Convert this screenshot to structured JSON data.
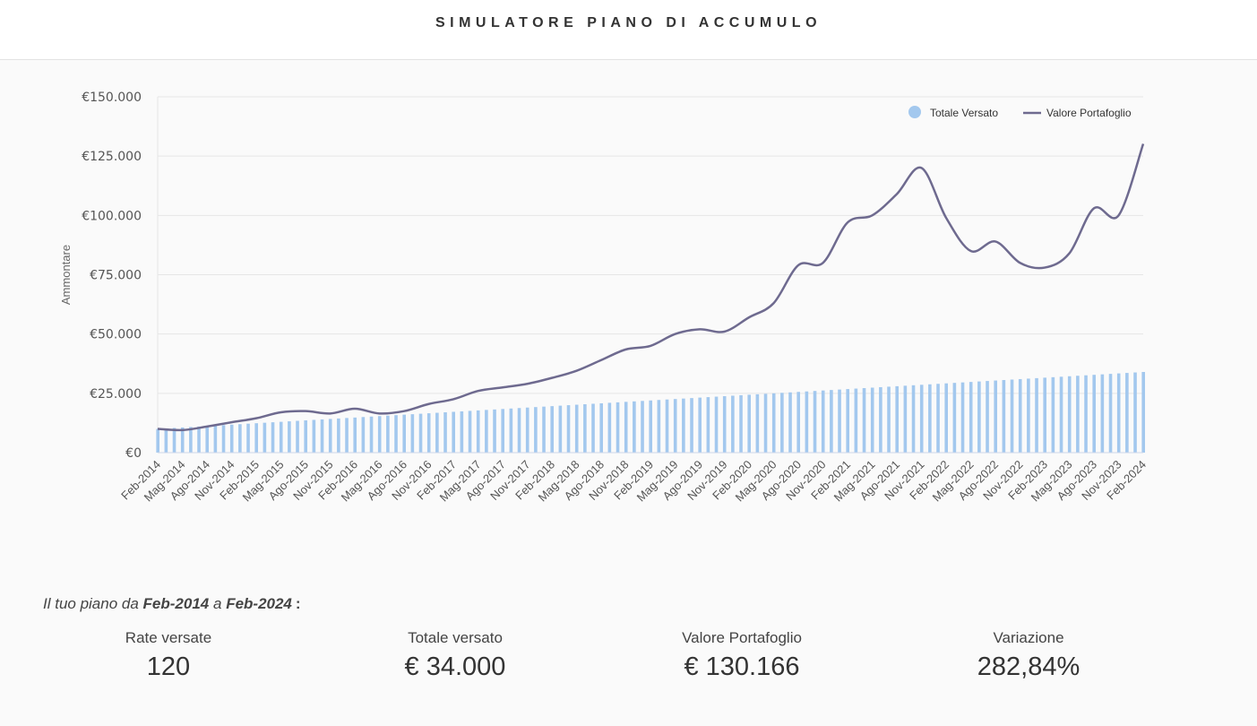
{
  "header": {
    "title": "SIMULATORE PIANO DI ACCUMULO"
  },
  "chart_data": {
    "type": "bar+line",
    "ylabel": "Ammontare",
    "ylim": [
      0,
      150000
    ],
    "yticks": [
      0,
      25000,
      50000,
      75000,
      100000,
      125000,
      150000
    ],
    "ytick_labels": [
      "€0",
      "€25.000",
      "€50.000",
      "€75.000",
      "€100.000",
      "€125.000",
      "€150.000"
    ],
    "grid": true,
    "legend_position": "top-right",
    "x_labels": [
      "Feb-2014",
      "Mag-2014",
      "Ago-2014",
      "Nov-2014",
      "Feb-2015",
      "Mag-2015",
      "Ago-2015",
      "Nov-2015",
      "Feb-2016",
      "Mag-2016",
      "Ago-2016",
      "Nov-2016",
      "Feb-2017",
      "Mag-2017",
      "Ago-2017",
      "Nov-2017",
      "Feb-2018",
      "Mag-2018",
      "Ago-2018",
      "Nov-2018",
      "Feb-2019",
      "Mag-2019",
      "Ago-2019",
      "Nov-2019",
      "Feb-2020",
      "Mag-2020",
      "Ago-2020",
      "Nov-2020",
      "Feb-2021",
      "Mag-2021",
      "Ago-2021",
      "Nov-2021",
      "Feb-2022",
      "Mag-2022",
      "Ago-2022",
      "Nov-2022",
      "Feb-2023",
      "Mag-2023",
      "Ago-2023",
      "Nov-2023",
      "Feb-2024"
    ],
    "series": [
      {
        "name": "Totale Versato",
        "type": "bar",
        "color": "#a3c8ee",
        "values": [
          10000,
          10200,
          10400,
          10600,
          10800,
          11000,
          11200,
          11400,
          11600,
          11800,
          12000,
          12200,
          12400,
          12600,
          12800,
          13000,
          13200,
          13400,
          13600,
          13800,
          14000,
          14200,
          14400,
          14600,
          14800,
          15000,
          15200,
          15400,
          15600,
          15800,
          16000,
          16200,
          16400,
          16600,
          16800,
          17000,
          17200,
          17400,
          17600,
          17800,
          18000,
          18200,
          18400,
          18600,
          18800,
          19000,
          19200,
          19400,
          19600,
          19800,
          20000,
          20200,
          20400,
          20600,
          20800,
          21000,
          21200,
          21400,
          21600,
          21800,
          22000,
          22200,
          22400,
          22600,
          22800,
          23000,
          23200,
          23400,
          23600,
          23800,
          24000,
          24200,
          24400,
          24600,
          24800,
          25000,
          25200,
          25400,
          25600,
          25800,
          26000,
          26200,
          26400,
          26600,
          26800,
          27000,
          27200,
          27400,
          27600,
          27800,
          28000,
          28200,
          28400,
          28600,
          28800,
          29000,
          29200,
          29400,
          29600,
          29800,
          30000,
          30200,
          30400,
          30600,
          30800,
          31000,
          31200,
          31400,
          31600,
          31800,
          32000,
          32200,
          32400,
          32600,
          32800,
          33000,
          33200,
          33400,
          33600,
          33800,
          34000
        ]
      },
      {
        "name": "Valore Portafoglio",
        "type": "line",
        "color": "#6e6a8f",
        "values_quarterly": [
          10000,
          9500,
          11000,
          12800,
          14500,
          17000,
          17500,
          16500,
          18500,
          16500,
          17500,
          20500,
          22500,
          26000,
          27500,
          29000,
          31500,
          34500,
          39000,
          43500,
          45000,
          50000,
          52000,
          51000,
          57000,
          63000,
          79000,
          80000,
          97000,
          100000,
          109000,
          120000,
          99000,
          85000,
          89000,
          80000,
          78000,
          84000,
          103000,
          100000,
          130166
        ]
      }
    ]
  },
  "summary": {
    "intro_prefix": "Il tuo piano da",
    "start": "Feb-2014",
    "mid": "a",
    "end": "Feb-2024",
    "colon": ":",
    "stats": [
      {
        "label": "Rate versate",
        "value": "120"
      },
      {
        "label": "Totale versato",
        "value": "€ 34.000"
      },
      {
        "label": "Valore Portafoglio",
        "value": "€ 130.166"
      },
      {
        "label": "Variazione",
        "value": "282,84%"
      }
    ]
  }
}
